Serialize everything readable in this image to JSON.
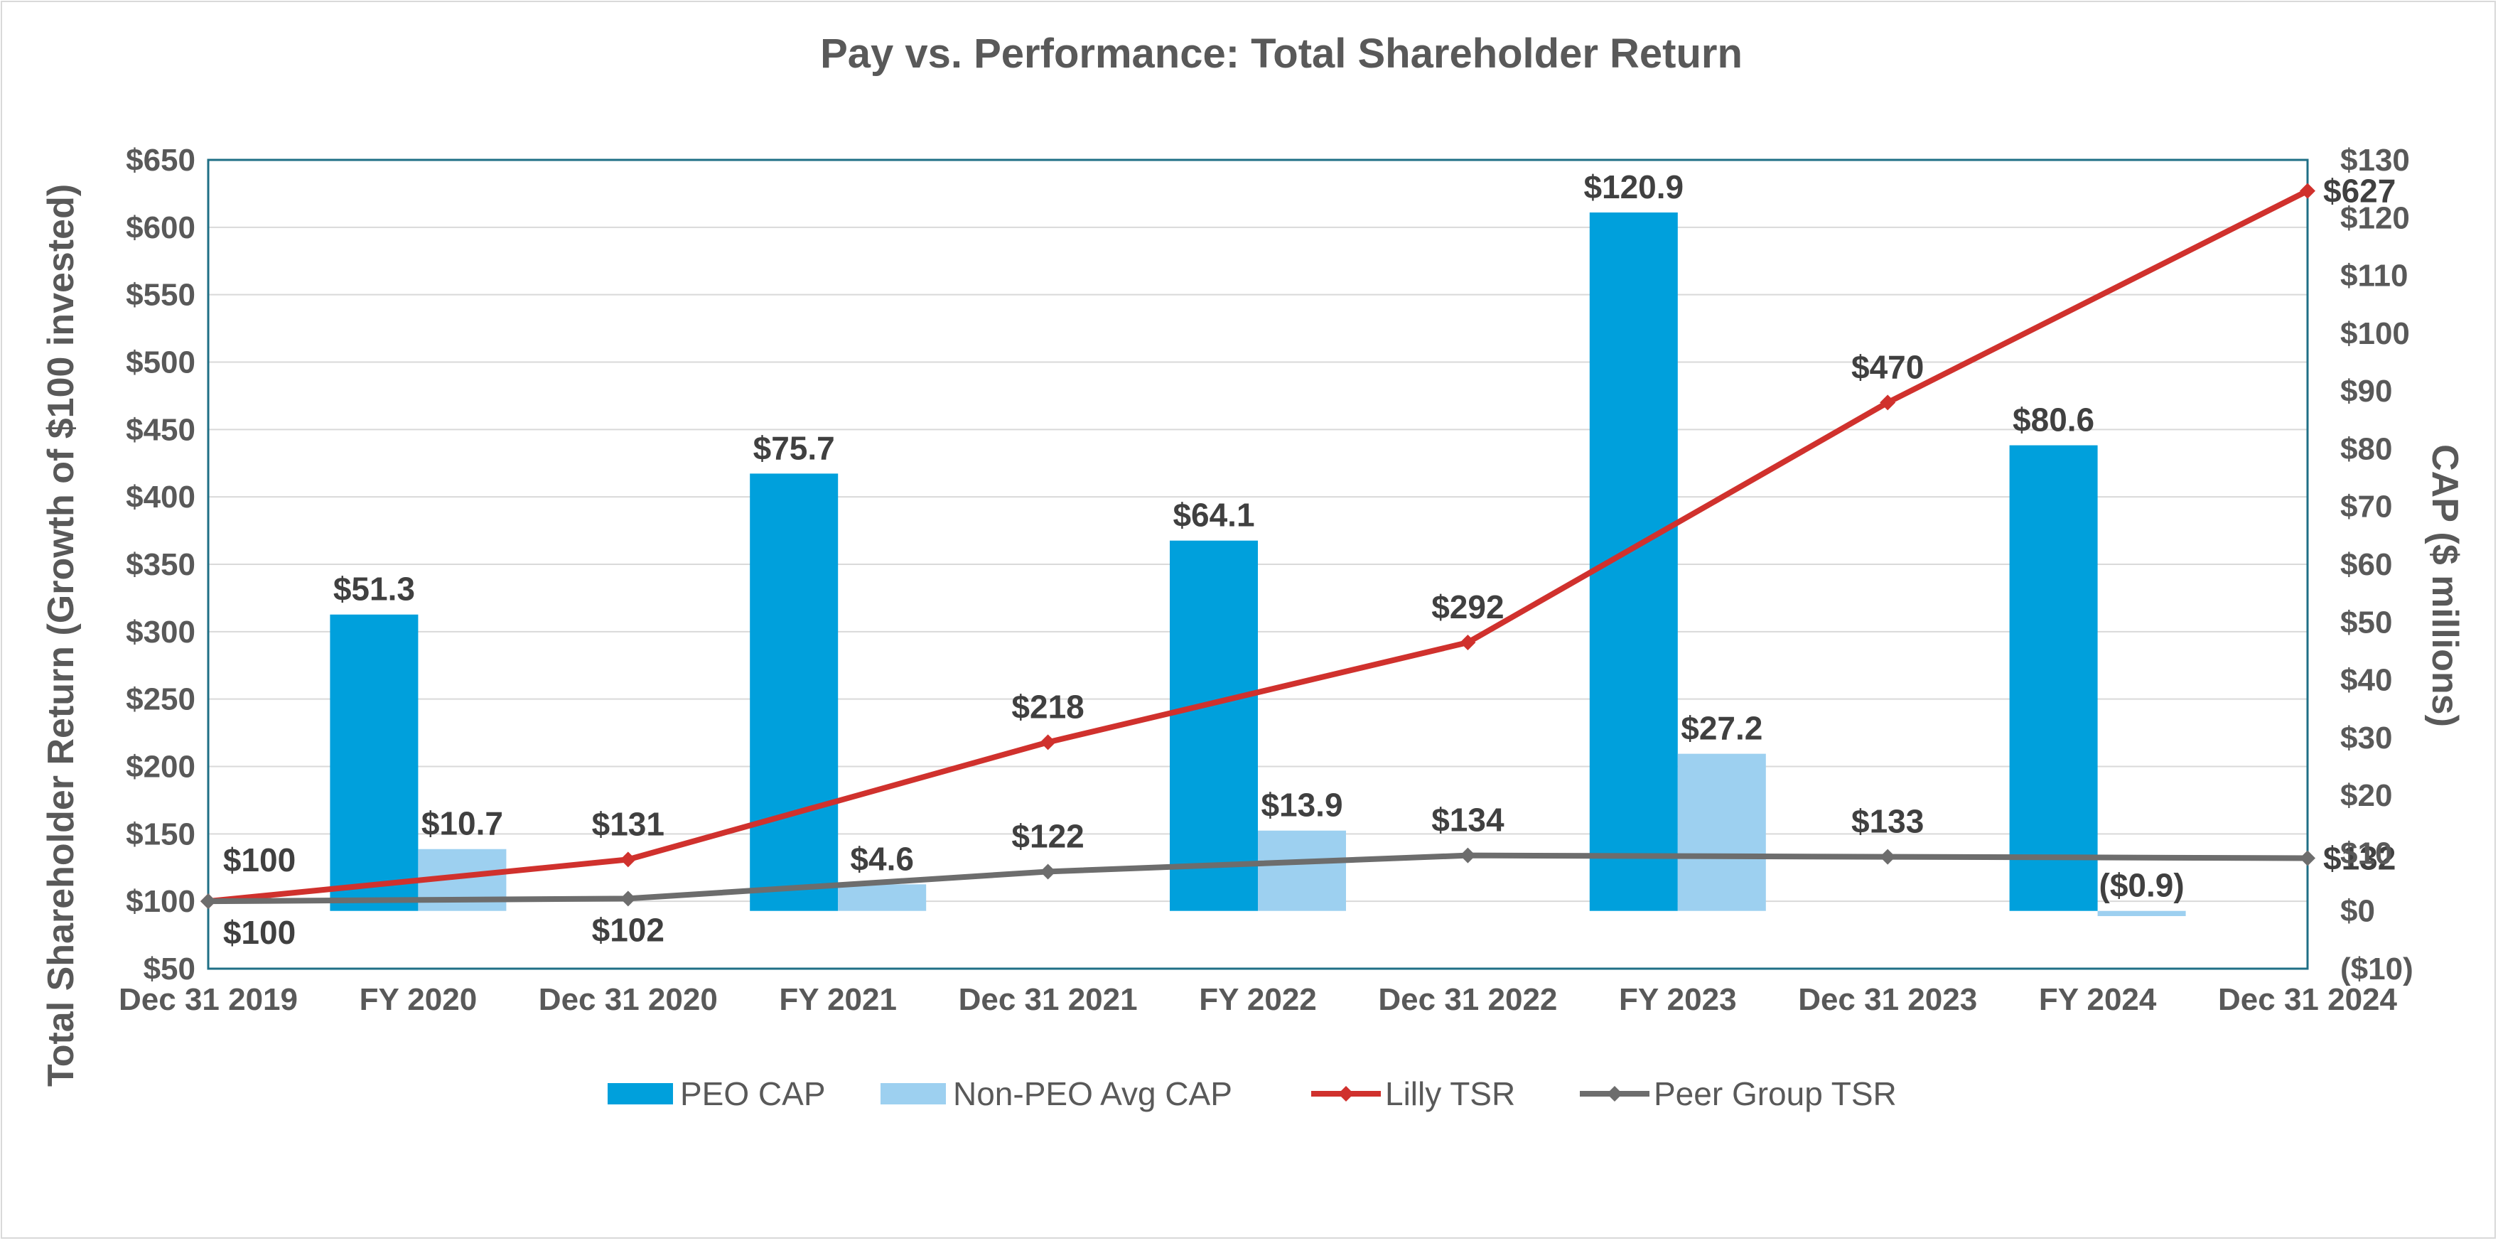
{
  "chart_data": {
    "type": "bar+line",
    "title": "Pay vs. Performance: Total Shareholder Return",
    "categories": [
      "Dec 31 2019",
      "FY 2020",
      "Dec 31 2020",
      "FY 2021",
      "Dec 31 2021",
      "FY 2022",
      "Dec 31 2022",
      "FY 2023",
      "Dec 31 2023",
      "FY 2024",
      "Dec 31 2024"
    ],
    "y_left": {
      "label": "Total Shareholder Return (Growth of $100 invested)",
      "min": 50,
      "max": 650,
      "step": 50,
      "ticks": [
        "$50",
        "$100",
        "$150",
        "$200",
        "$250",
        "$300",
        "$350",
        "$400",
        "$450",
        "$500",
        "$550",
        "$600",
        "$650"
      ]
    },
    "y_right": {
      "label": "CAP ($ millions)",
      "min": -10,
      "max": 130,
      "step": 10,
      "ticks": [
        "($10)",
        "$0",
        "$10",
        "$20",
        "$30",
        "$40",
        "$50",
        "$60",
        "$70",
        "$80",
        "$90",
        "$100",
        "$110",
        "$120",
        "$130"
      ]
    },
    "bar_series": [
      {
        "name": "PEO CAP",
        "axis": "right",
        "color": "#00a0dc",
        "points": [
          {
            "category": "FY 2020",
            "value": 51.3,
            "label": "$51.3"
          },
          {
            "category": "FY 2021",
            "value": 75.7,
            "label": "$75.7"
          },
          {
            "category": "FY 2022",
            "value": 64.1,
            "label": "$64.1"
          },
          {
            "category": "FY 2023",
            "value": 120.9,
            "label": "$120.9"
          },
          {
            "category": "FY 2024",
            "value": 80.6,
            "label": "$80.6"
          }
        ]
      },
      {
        "name": "Non-PEO Avg CAP",
        "axis": "right",
        "color": "#9dd0f0",
        "points": [
          {
            "category": "FY 2020",
            "value": 10.7,
            "label": "$10.7"
          },
          {
            "category": "FY 2021",
            "value": 4.6,
            "label": "$4.6"
          },
          {
            "category": "FY 2022",
            "value": 13.9,
            "label": "$13.9"
          },
          {
            "category": "FY 2023",
            "value": 27.2,
            "label": "$27.2"
          },
          {
            "category": "FY 2024",
            "value": -0.9,
            "label": "($0.9)"
          }
        ]
      }
    ],
    "line_series": [
      {
        "name": "Lilly TSR",
        "axis": "left",
        "color": "#d0312d",
        "points": [
          {
            "category": "Dec 31 2019",
            "value": 100,
            "label": "$100"
          },
          {
            "category": "Dec 31 2020",
            "value": 131,
            "label": "$131"
          },
          {
            "category": "Dec 31 2021",
            "value": 218,
            "label": "$218"
          },
          {
            "category": "Dec 31 2022",
            "value": 292,
            "label": "$292"
          },
          {
            "category": "Dec 31 2023",
            "value": 470,
            "label": "$470"
          },
          {
            "category": "Dec 31 2024",
            "value": 627,
            "label": "$627"
          }
        ]
      },
      {
        "name": "Peer Group TSR",
        "axis": "left",
        "color": "#6d6d6d",
        "points": [
          {
            "category": "Dec 31 2019",
            "value": 100,
            "label": "$100"
          },
          {
            "category": "Dec 31 2020",
            "value": 102,
            "label": "$102"
          },
          {
            "category": "Dec 31 2021",
            "value": 122,
            "label": "$122"
          },
          {
            "category": "Dec 31 2022",
            "value": 134,
            "label": "$134"
          },
          {
            "category": "Dec 31 2023",
            "value": 133,
            "label": "$133"
          },
          {
            "category": "Dec 31 2024",
            "value": 132,
            "label": "$132"
          }
        ]
      }
    ],
    "gridlines": true,
    "legend_position": "bottom"
  }
}
